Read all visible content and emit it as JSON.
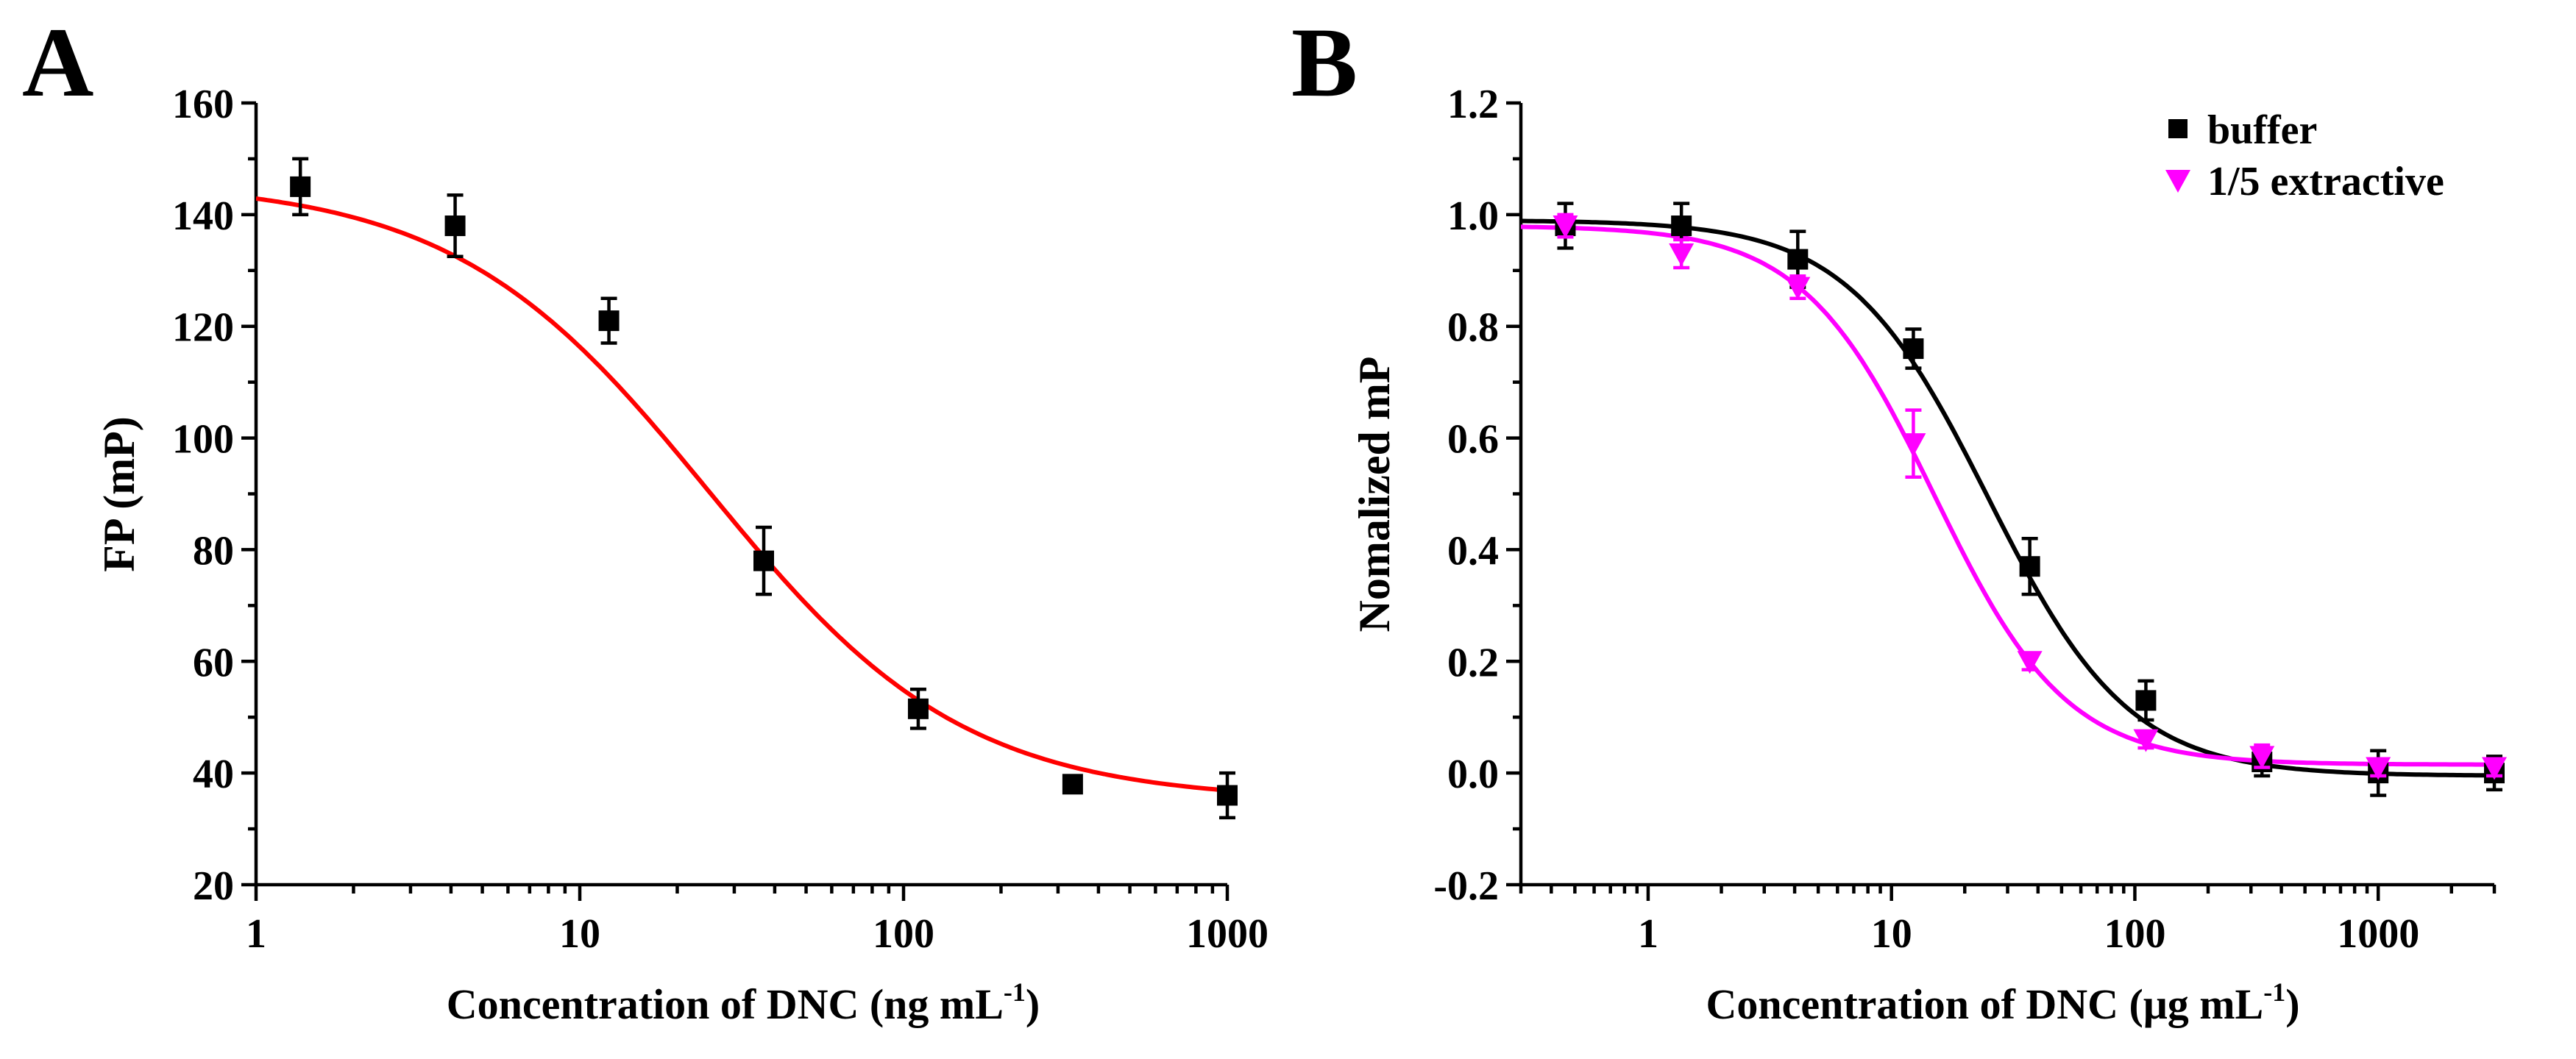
{
  "chart_data": [
    {
      "panel_label": "A",
      "type": "scatter",
      "xlabel_main": "Concentration of DNC (ng mL",
      "xlabel_sup": "-1",
      "xlabel_tail": ")",
      "ylabel": "FP (mP)",
      "xscale": "log",
      "xlim": [
        1,
        1000
      ],
      "ylim": [
        20,
        160
      ],
      "xticks": [
        1,
        10,
        100,
        1000
      ],
      "xtick_labels": [
        "1",
        "10",
        "100",
        "1000"
      ],
      "yticks": [
        20,
        40,
        60,
        80,
        100,
        120,
        140,
        160
      ],
      "ytick_labels": [
        "20",
        "40",
        "60",
        "80",
        "100",
        "120",
        "140",
        "160"
      ],
      "grid": false,
      "series": [
        {
          "marker": "square",
          "color": "#000000",
          "fit_color": "#ff0000",
          "x": [
            1.37,
            4.12,
            12.3,
            37.0,
            111,
            333,
            1000
          ],
          "y": [
            145,
            138,
            121,
            78,
            51.5,
            38,
            36
          ],
          "yerr": [
            5,
            5.5,
            4,
            6,
            3.5,
            1.5,
            4
          ],
          "fit": {
            "model": "4PL",
            "top": 146,
            "bottom": 35,
            "ec50": 25,
            "hill": 1.1
          }
        }
      ]
    },
    {
      "panel_label": "B",
      "type": "scatter",
      "xlabel_main": "Concentration of DNC (μg mL",
      "xlabel_sup": "-1",
      "xlabel_tail": ")",
      "ylabel": "Nomalized mP",
      "xscale": "log",
      "xlim": [
        0.3,
        3000
      ],
      "ylim": [
        -0.2,
        1.2
      ],
      "xticks": [
        1,
        10,
        100,
        1000
      ],
      "xtick_labels": [
        "1",
        "10",
        "100",
        "1000"
      ],
      "yticks": [
        -0.2,
        0.0,
        0.2,
        0.4,
        0.6,
        0.8,
        1.0,
        1.2
      ],
      "ytick_labels": [
        "-0.2",
        "0.0",
        "0.2",
        "0.4",
        "0.6",
        "0.8",
        "1.0",
        "1.2"
      ],
      "grid": false,
      "legend_position": "top-right",
      "series": [
        {
          "name": "buffer",
          "marker": "square",
          "color": "#000000",
          "fit_color": "#000000",
          "x": [
            0.457,
            1.37,
            4.12,
            12.3,
            37.0,
            111,
            333,
            1000,
            3000
          ],
          "y": [
            0.98,
            0.98,
            0.92,
            0.76,
            0.37,
            0.13,
            0.02,
            0.0,
            0.0
          ],
          "yerr": [
            0.04,
            0.04,
            0.05,
            0.035,
            0.05,
            0.035,
            0.025,
            0.04,
            0.03
          ],
          "fit": {
            "model": "4PL",
            "top": 0.99,
            "bottom": -0.005,
            "ec50": 25,
            "hill": 1.5
          }
        },
        {
          "name": "1/5 extractive",
          "marker": "triangle-down",
          "color": "#ff00ff",
          "fit_color": "#ff00ff",
          "x": [
            0.457,
            1.37,
            4.12,
            12.3,
            37.0,
            111,
            333,
            1000,
            3000
          ],
          "y": [
            0.98,
            0.93,
            0.87,
            0.59,
            0.2,
            0.06,
            0.03,
            0.01,
            0.01
          ],
          "yerr": [
            0.02,
            0.025,
            0.02,
            0.06,
            0.015,
            0.015,
            0.02,
            0.015,
            0.015
          ],
          "fit": {
            "model": "4PL",
            "top": 0.98,
            "bottom": 0.015,
            "ec50": 15,
            "hill": 1.6
          }
        }
      ]
    }
  ]
}
